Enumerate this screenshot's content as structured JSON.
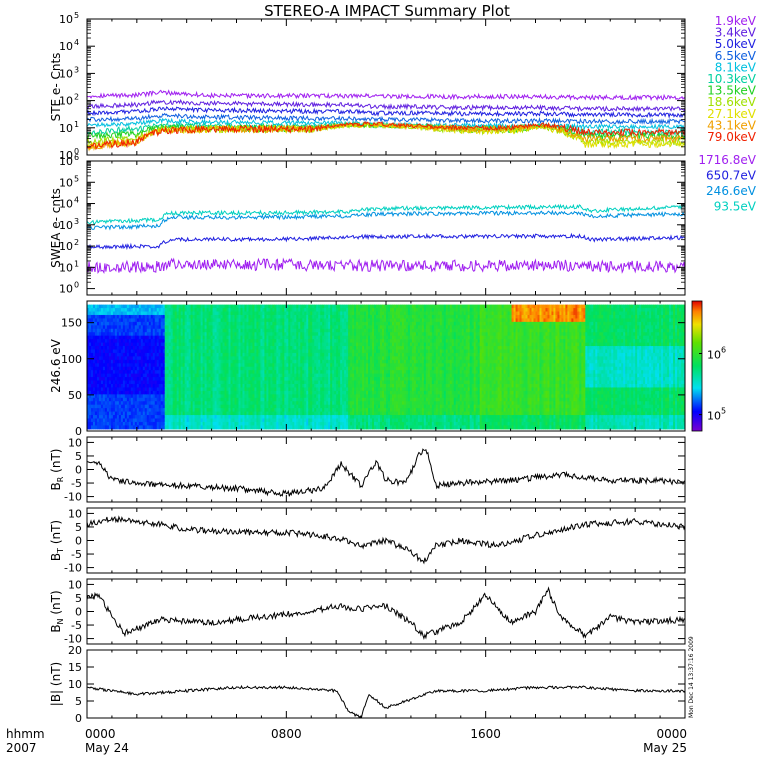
{
  "title": "STEREO-A IMPACT Summary Plot",
  "stamp": "Mon Dec 14 13:37:16 2009",
  "time_axis": {
    "row1_label": "hhmm",
    "row2_label": "2007",
    "ticks": [
      {
        "hour": 0,
        "label": "0000",
        "sub": "May 24"
      },
      {
        "hour": 8,
        "label": "0800",
        "sub": ""
      },
      {
        "hour": 16,
        "label": "1600",
        "sub": ""
      },
      {
        "hour": 24,
        "label": "0000",
        "sub": "May 25"
      }
    ],
    "range_hours": [
      0,
      24
    ]
  },
  "chart_data": [
    {
      "id": "ste",
      "type": "line",
      "ylabel": "STE e- Cnts",
      "yscale": "log",
      "ylim": [
        1,
        100000
      ],
      "yticks": [
        {
          "value": 1,
          "base": "10",
          "exp": "0"
        },
        {
          "value": 10,
          "base": "10",
          "exp": "1"
        },
        {
          "value": 100,
          "base": "10",
          "exp": "2"
        },
        {
          "value": 1000,
          "base": "10",
          "exp": "3"
        },
        {
          "value": 10000,
          "base": "10",
          "exp": "4"
        },
        {
          "value": 100000,
          "base": "10",
          "exp": "5"
        }
      ],
      "x_hours": [
        0,
        2,
        3,
        5,
        9,
        10.5,
        11.5,
        13,
        15,
        17,
        18.3,
        20,
        22,
        24
      ],
      "series": [
        {
          "name": "1.9keV",
          "color": "#a020f0",
          "values": [
            150,
            160,
            200,
            150,
            150,
            150,
            150,
            140,
            140,
            140,
            140,
            130,
            130,
            130
          ]
        },
        {
          "name": "3.4keV",
          "color": "#6020e0",
          "values": [
            60,
            70,
            90,
            80,
            70,
            70,
            60,
            60,
            55,
            55,
            55,
            50,
            50,
            50
          ]
        },
        {
          "name": "5.0keV",
          "color": "#2020e0",
          "values": [
            35,
            40,
            50,
            45,
            40,
            40,
            35,
            35,
            33,
            33,
            33,
            30,
            30,
            30
          ]
        },
        {
          "name": "6.5keV",
          "color": "#1060e0",
          "values": [
            20,
            22,
            28,
            25,
            22,
            22,
            20,
            20,
            18,
            18,
            18,
            17,
            17,
            17
          ]
        },
        {
          "name": "8.1keV",
          "color": "#00c0e0",
          "values": [
            12,
            14,
            18,
            16,
            15,
            15,
            13,
            13,
            12,
            12,
            12,
            11,
            11,
            11
          ]
        },
        {
          "name": "10.3keV",
          "color": "#00d0a0",
          "values": [
            7,
            9,
            13,
            12,
            11,
            14,
            12,
            12,
            10,
            10,
            12,
            7,
            7,
            7
          ]
        },
        {
          "name": "13.5keV",
          "color": "#20d020",
          "values": [
            5,
            6,
            11,
            10,
            9,
            13,
            12,
            12,
            9,
            9,
            11,
            5,
            5,
            5
          ]
        },
        {
          "name": "18.6keV",
          "color": "#a0e000",
          "values": [
            3,
            4,
            9,
            9,
            9,
            12,
            12,
            11,
            8,
            8,
            11,
            3,
            3,
            3
          ]
        },
        {
          "name": "27.1keV",
          "color": "#e0e000",
          "values": [
            2,
            3,
            8,
            9,
            9,
            12,
            12,
            11,
            8,
            8,
            11,
            2.5,
            2.5,
            2.5
          ]
        },
        {
          "name": "43.1keV",
          "color": "#f0a000",
          "values": [
            2,
            3,
            8,
            9,
            9,
            13,
            13,
            11,
            9,
            9,
            12,
            4,
            4,
            4
          ]
        },
        {
          "name": "79.0keV",
          "color": "#f02000",
          "values": [
            2,
            3,
            8,
            9,
            9,
            14,
            14,
            12,
            10,
            10,
            13,
            7,
            7,
            7
          ]
        }
      ]
    },
    {
      "id": "swea",
      "type": "line",
      "ylabel": "SWEA e- cnts",
      "yscale": "log",
      "ylim": [
        0.5,
        1000000
      ],
      "yticks": [
        {
          "value": 1,
          "base": "10",
          "exp": "0"
        },
        {
          "value": 10,
          "base": "10",
          "exp": "1"
        },
        {
          "value": 100,
          "base": "10",
          "exp": "2"
        },
        {
          "value": 1000,
          "base": "10",
          "exp": "3"
        },
        {
          "value": 10000,
          "base": "10",
          "exp": "4"
        },
        {
          "value": 100000,
          "base": "10",
          "exp": "5"
        },
        {
          "value": 1000000,
          "base": "10",
          "exp": "6"
        }
      ],
      "x_hours": [
        0,
        2.9,
        3.3,
        8,
        10.5,
        11.5,
        16,
        19.8,
        20.2,
        24
      ],
      "series": [
        {
          "name": "1716.8eV",
          "color": "#a020f0",
          "values": [
            10,
            11,
            14,
            13,
            12,
            12,
            12,
            12,
            11,
            11
          ]
        },
        {
          "name": "650.7eV",
          "color": "#2020e0",
          "values": [
            90,
            100,
            200,
            210,
            260,
            280,
            290,
            300,
            200,
            250
          ]
        },
        {
          "name": "246.6eV",
          "color": "#0090e0",
          "values": [
            700,
            900,
            2200,
            2300,
            2600,
            3200,
            3500,
            3600,
            2500,
            3300
          ]
        },
        {
          "name": "93.5eV",
          "color": "#00d0c0",
          "values": [
            1300,
            1700,
            3600,
            3700,
            4200,
            5800,
            6500,
            7000,
            4500,
            6800
          ]
        }
      ]
    },
    {
      "id": "pad",
      "type": "heatmap",
      "ylabel": "246.6 eV",
      "ylim": [
        0,
        180
      ],
      "yticks": [
        0,
        50,
        100,
        150
      ],
      "colorbar": {
        "scale": "log",
        "ticks": [
          {
            "base": "10",
            "exp": "5"
          },
          {
            "base": "10",
            "exp": "6"
          }
        ]
      },
      "segments": [
        {
          "x0": 0,
          "x1": 3.1,
          "level": 0.15
        },
        {
          "x0": 3.1,
          "x1": 10.5,
          "level": 0.47
        },
        {
          "x0": 10.5,
          "x1": 15.8,
          "level": 0.56
        },
        {
          "x0": 15.8,
          "x1": 20,
          "level": 0.6
        },
        {
          "x0": 20,
          "x1": 24,
          "level": 0.5
        }
      ]
    },
    {
      "id": "br",
      "type": "line",
      "ylabel": "B",
      "ylabel_sub": "R",
      "ylabel_unit": "(nT)",
      "ylim": [
        -12,
        12
      ],
      "yticks": [
        -10,
        -5,
        0,
        5,
        10
      ],
      "x_hours": [
        0,
        0.5,
        1,
        2,
        4,
        6,
        8,
        9.5,
        10.2,
        10.6,
        11,
        11.6,
        12,
        12.8,
        13.3,
        13.6,
        14,
        15,
        17,
        19,
        21,
        23,
        24
      ],
      "series": [
        {
          "color": "#000000",
          "values": [
            3,
            2,
            -4,
            -5,
            -6,
            -7,
            -9,
            -7,
            2,
            -2,
            -6,
            3,
            -4,
            -5,
            5,
            8,
            -6,
            -5,
            -4,
            -2,
            -4,
            -4,
            -5
          ]
        }
      ]
    },
    {
      "id": "bt",
      "type": "line",
      "ylabel": "B",
      "ylabel_sub": "T",
      "ylabel_unit": "(nT)",
      "ylim": [
        -12,
        12
      ],
      "yticks": [
        -10,
        -5,
        0,
        5,
        10
      ],
      "x_hours": [
        0,
        1,
        2,
        3,
        4,
        6,
        8,
        10,
        11,
        12,
        13,
        13.5,
        14,
        15,
        16.5,
        18,
        20,
        22,
        24
      ],
      "series": [
        {
          "color": "#000000",
          "values": [
            6,
            8,
            7,
            6,
            4,
            3,
            3,
            1,
            -2,
            0,
            -4,
            -8,
            -2,
            0,
            -2,
            2,
            6,
            7,
            5
          ]
        }
      ]
    },
    {
      "id": "bn",
      "type": "line",
      "ylabel": "B",
      "ylabel_sub": "N",
      "ylabel_unit": "(nT)",
      "ylim": [
        -12,
        12
      ],
      "yticks": [
        -10,
        -5,
        0,
        5,
        10
      ],
      "x_hours": [
        0,
        0.5,
        1,
        1.5,
        3,
        5,
        7,
        9,
        10,
        11,
        12,
        13,
        13.5,
        15,
        16,
        17,
        18,
        18.5,
        19,
        20,
        21,
        22,
        24
      ],
      "series": [
        {
          "color": "#000000",
          "values": [
            5,
            6,
            -2,
            -8,
            -3,
            -4,
            -2,
            0,
            2,
            1,
            2,
            -4,
            -9,
            -4,
            6,
            -4,
            0,
            8,
            -2,
            -9,
            -2,
            -4,
            -3
          ]
        }
      ]
    },
    {
      "id": "bmag",
      "type": "line",
      "ylabel": "|B|",
      "ylabel_unit": "(nT)",
      "ylim": [
        0,
        20
      ],
      "yticks": [
        0,
        5,
        10,
        15,
        20
      ],
      "x_hours": [
        0,
        1,
        2,
        4,
        6,
        8,
        10,
        10.5,
        11,
        11.3,
        12,
        14,
        16,
        18,
        20,
        22,
        24
      ],
      "series": [
        {
          "color": "#000000",
          "values": [
            9,
            8,
            7,
            8,
            9,
            9,
            8,
            2,
            0,
            7,
            3,
            8,
            8,
            9,
            9,
            8,
            8
          ]
        }
      ]
    }
  ]
}
